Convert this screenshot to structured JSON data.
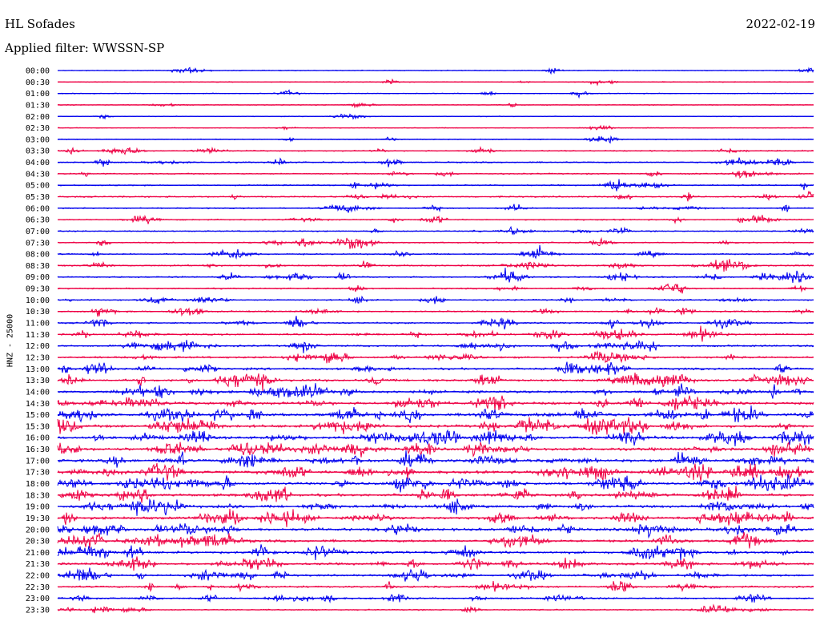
{
  "header": {
    "station": "HL Sofades",
    "date": "2022-02-19",
    "filter": "Applied filter: WWSSN-SP"
  },
  "axis_label": "HNZ - 25000",
  "colors": {
    "blue": "#0000ee",
    "red": "#ee0044"
  },
  "chart_data": {
    "type": "line",
    "title": "HL Sofades",
    "ylabel": "HNZ - 25000",
    "x_unit": "minutes per line",
    "line_minutes": 30,
    "color_cycle": [
      "blue",
      "red"
    ],
    "rows": [
      {
        "label": "00:00",
        "activity": 0.1
      },
      {
        "label": "00:30",
        "activity": 0.12
      },
      {
        "label": "01:00",
        "activity": 0.08
      },
      {
        "label": "01:30",
        "activity": 0.1
      },
      {
        "label": "02:00",
        "activity": 0.04
      },
      {
        "label": "02:30",
        "activity": 0.06
      },
      {
        "label": "03:00",
        "activity": 0.12
      },
      {
        "label": "03:30",
        "activity": 0.25
      },
      {
        "label": "04:00",
        "activity": 0.3
      },
      {
        "label": "04:30",
        "activity": 0.28
      },
      {
        "label": "05:00",
        "activity": 0.3
      },
      {
        "label": "05:30",
        "activity": 0.35
      },
      {
        "label": "06:00",
        "activity": 0.28
      },
      {
        "label": "06:30",
        "activity": 0.3
      },
      {
        "label": "07:00",
        "activity": 0.25
      },
      {
        "label": "07:30",
        "activity": 0.3
      },
      {
        "label": "08:00",
        "activity": 0.3
      },
      {
        "label": "08:30",
        "activity": 0.4
      },
      {
        "label": "09:00",
        "activity": 0.4
      },
      {
        "label": "09:30",
        "activity": 0.3
      },
      {
        "label": "10:00",
        "activity": 0.32
      },
      {
        "label": "10:30",
        "activity": 0.4
      },
      {
        "label": "11:00",
        "activity": 0.4
      },
      {
        "label": "11:30",
        "activity": 0.45
      },
      {
        "label": "12:00",
        "activity": 0.5
      },
      {
        "label": "12:30",
        "activity": 0.55
      },
      {
        "label": "13:00",
        "activity": 0.6
      },
      {
        "label": "13:30",
        "activity": 0.7
      },
      {
        "label": "14:00",
        "activity": 0.8
      },
      {
        "label": "14:30",
        "activity": 0.85
      },
      {
        "label": "15:00",
        "activity": 0.9
      },
      {
        "label": "15:30",
        "activity": 0.9
      },
      {
        "label": "16:00",
        "activity": 0.95
      },
      {
        "label": "16:30",
        "activity": 0.95
      },
      {
        "label": "17:00",
        "activity": 0.95
      },
      {
        "label": "17:30",
        "activity": 0.9
      },
      {
        "label": "18:00",
        "activity": 0.9
      },
      {
        "label": "18:30",
        "activity": 0.85
      },
      {
        "label": "19:00",
        "activity": 0.8
      },
      {
        "label": "19:30",
        "activity": 0.85
      },
      {
        "label": "20:00",
        "activity": 0.85
      },
      {
        "label": "20:30",
        "activity": 0.8
      },
      {
        "label": "21:00",
        "activity": 0.75
      },
      {
        "label": "21:30",
        "activity": 0.7
      },
      {
        "label": "22:00",
        "activity": 0.55
      },
      {
        "label": "22:30",
        "activity": 0.5
      },
      {
        "label": "23:00",
        "activity": 0.45
      },
      {
        "label": "23:30",
        "activity": 0.3
      }
    ]
  }
}
